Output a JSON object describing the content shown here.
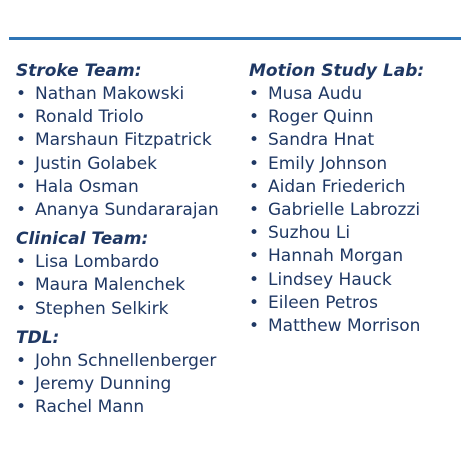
{
  "colors": {
    "text": "#1F3864",
    "rule": "#2E75B6"
  },
  "bullet_glyph": "•",
  "left_column": [
    {
      "title": "Stroke Team:",
      "members": [
        "Nathan Makowski",
        "Ronald Triolo",
        "Marshaun Fitzpatrick",
        "Justin Golabek",
        "Hala Osman",
        "Ananya Sundararajan"
      ]
    },
    {
      "title": "Clinical Team:",
      "members": [
        "Lisa Lombardo",
        "Maura Malenchek",
        "Stephen Selkirk"
      ]
    },
    {
      "title": "TDL:",
      "members": [
        "John Schnellenberger",
        "Jeremy Dunning",
        "Rachel Mann"
      ]
    }
  ],
  "right_column": [
    {
      "title": "Motion Study Lab:",
      "members": [
        "Musa Audu",
        "Roger Quinn",
        "Sandra Hnat",
        "Emily Johnson",
        "Aidan Friederich",
        "Gabrielle Labrozzi",
        "Suzhou Li",
        "Hannah Morgan",
        "Lindsey Hauck",
        "Eileen Petros",
        "Matthew Morrison"
      ]
    }
  ]
}
